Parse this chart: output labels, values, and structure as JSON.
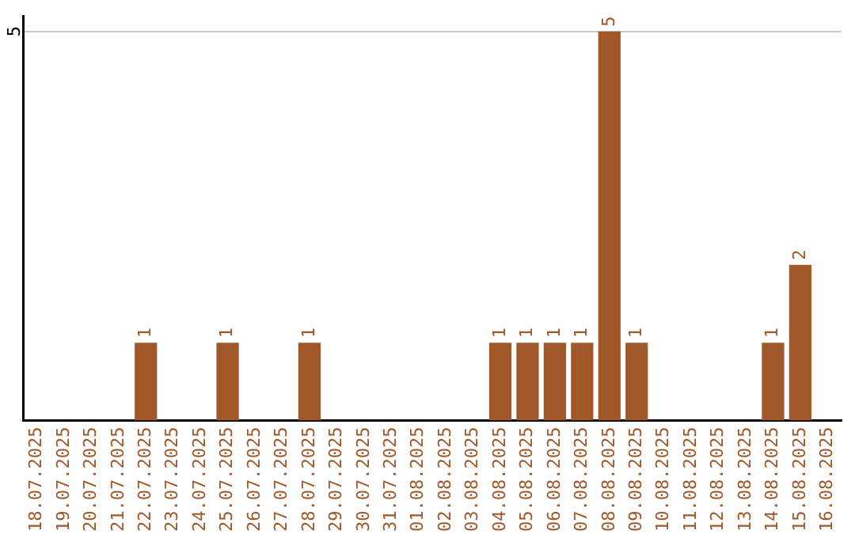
{
  "chart_data": {
    "type": "bar",
    "categories": [
      "18.07.2025",
      "19.07.2025",
      "20.07.2025",
      "21.07.2025",
      "22.07.2025",
      "23.07.2025",
      "24.07.2025",
      "25.07.2025",
      "26.07.2025",
      "27.07.2025",
      "28.07.2025",
      "29.07.2025",
      "30.07.2025",
      "31.07.2025",
      "01.08.2025",
      "02.08.2025",
      "03.08.2025",
      "04.08.2025",
      "05.08.2025",
      "06.08.2025",
      "07.08.2025",
      "08.08.2025",
      "09.08.2025",
      "10.08.2025",
      "11.08.2025",
      "12.08.2025",
      "13.08.2025",
      "14.08.2025",
      "15.08.2025",
      "16.08.2025"
    ],
    "values": [
      0,
      0,
      0,
      0,
      1,
      0,
      0,
      1,
      0,
      0,
      1,
      0,
      0,
      0,
      0,
      0,
      0,
      1,
      1,
      1,
      1,
      5,
      1,
      0,
      0,
      0,
      0,
      1,
      2,
      0
    ],
    "value_labels": [
      null,
      null,
      null,
      null,
      "1",
      null,
      null,
      "1",
      null,
      null,
      "1",
      null,
      null,
      null,
      null,
      null,
      null,
      "1",
      "1",
      "1",
      "1",
      "5",
      "1",
      null,
      null,
      null,
      null,
      "1",
      "2",
      null
    ],
    "color": "#a0582a",
    "ylim": [
      0,
      5.2
    ],
    "yticks": [
      5
    ],
    "grid": "y",
    "legend": false
  }
}
